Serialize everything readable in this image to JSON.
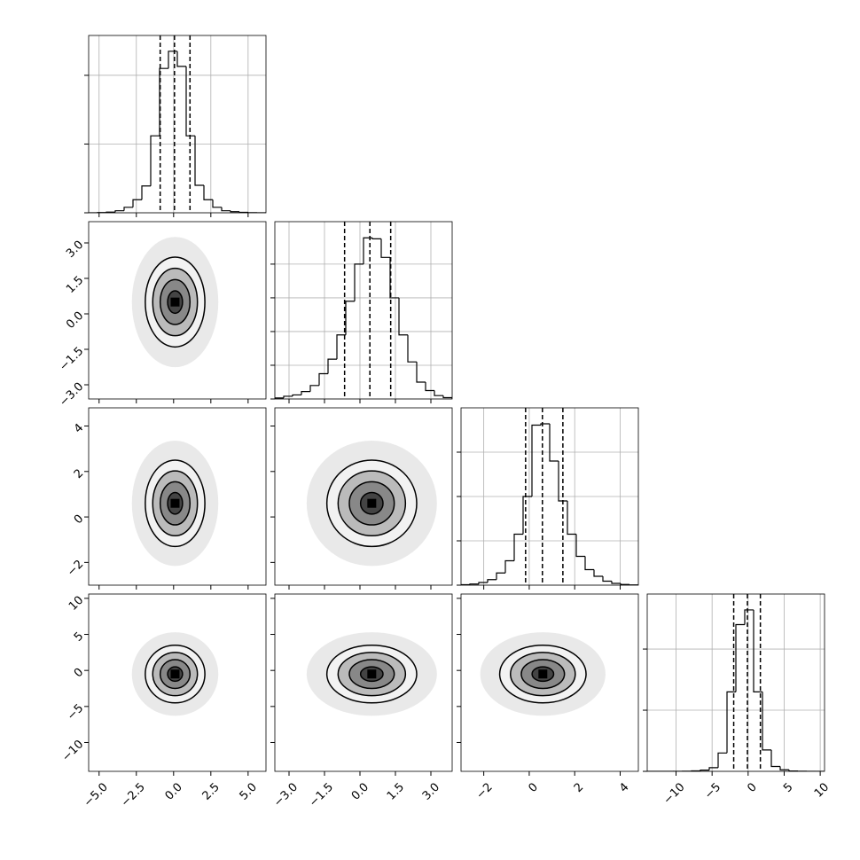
{
  "chart_data": {
    "type": "corner",
    "lims": [
      [
        -5.7,
        6.2
      ],
      [
        -3.6,
        3.9
      ],
      [
        -3,
        4.8
      ],
      [
        -14,
        10.6
      ]
    ],
    "ticks": [
      [
        {
          "value": -5,
          "label": "−5.0"
        },
        {
          "value": -2.5,
          "label": "−2.5"
        },
        {
          "value": 0,
          "label": "0.0"
        },
        {
          "value": 2.5,
          "label": "2.5"
        },
        {
          "value": 5,
          "label": "5.0"
        }
      ],
      [
        {
          "value": -3,
          "label": "−3.0"
        },
        {
          "value": -1.5,
          "label": "−1.5"
        },
        {
          "value": 0,
          "label": "0.0"
        },
        {
          "value": 1.5,
          "label": "1.5"
        },
        {
          "value": 3,
          "label": "3.0"
        }
      ],
      [
        {
          "value": -2,
          "label": "−2"
        },
        0,
        2,
        4
      ],
      [
        {
          "value": -10,
          "label": "−10"
        },
        {
          "value": -5,
          "label": "−5"
        },
        0,
        5,
        10
      ]
    ],
    "means": [
      0.1,
      0.5,
      0.6,
      -0.5
    ],
    "sigmas": [
      1,
      0.95,
      0.95,
      2
    ],
    "levels": [
      0.5,
      1,
      1.5,
      2
    ],
    "hists": [
      {
        "bins": [
          -5.7,
          -5.105,
          -4.51,
          -3.915,
          -3.32,
          -2.725,
          -2.13,
          -1.535,
          -0.94,
          -0.345,
          0.25,
          0.845,
          1.44,
          2.035,
          2.63,
          3.225,
          3.82,
          4.415,
          5.01,
          5.605,
          6.2
        ],
        "counts": [
          0,
          2,
          5,
          15,
          40,
          95,
          195,
          560,
          1050,
          1175,
          1065,
          560,
          200,
          95,
          40,
          15,
          8,
          3,
          1,
          0
        ],
        "ylim": [
          0,
          1290
        ],
        "yticks": [
          0,
          500,
          1000
        ],
        "quantiles": [
          -0.9,
          0.06,
          1.1
        ]
      },
      {
        "bins": [
          -3.6,
          -3.225,
          -2.85,
          -2.475,
          -2.1,
          -1.725,
          -1.35,
          -0.975,
          -0.6,
          -0.225,
          0.15,
          0.525,
          0.9,
          1.275,
          1.65,
          2.025,
          2.4,
          2.775,
          3.15,
          3.525,
          3.9
        ],
        "counts": [
          3,
          8,
          12,
          22,
          40,
          75,
          118,
          190,
          290,
          400,
          478,
          475,
          420,
          300,
          190,
          110,
          50,
          25,
          10,
          4
        ],
        "ylim": [
          0,
          526
        ],
        "yticks": [
          0,
          100,
          200,
          300,
          400
        ],
        "quantiles": [
          -0.65,
          0.42,
          1.3
        ]
      },
      {
        "bins": [
          -3,
          -2.61,
          -2.22,
          -1.83,
          -1.44,
          -1.05,
          -0.66,
          -0.27,
          0.12,
          0.51,
          0.9,
          1.29,
          1.68,
          2.07,
          2.46,
          2.85,
          3.24,
          3.63,
          4.02,
          4.41,
          4.8
        ],
        "counts": [
          2,
          5,
          12,
          25,
          55,
          110,
          230,
          400,
          722,
          728,
          560,
          380,
          230,
          130,
          70,
          40,
          18,
          8,
          3,
          1
        ],
        "ylim": [
          0,
          800
        ],
        "yticks": [
          0,
          200,
          400,
          600
        ],
        "quantiles": [
          -0.16,
          0.58,
          1.48
        ]
      },
      {
        "bins": [
          -14,
          -12.77,
          -11.54,
          -10.31,
          -9.08,
          -7.85,
          -6.62,
          -5.39,
          -4.16,
          -2.93,
          -1.7,
          -0.47,
          0.76,
          1.99,
          3.22,
          4.45,
          5.68,
          6.91,
          8.14,
          9.37,
          10.6
        ],
        "counts": [
          0,
          0,
          0,
          1,
          3,
          8,
          20,
          60,
          300,
          1300,
          2400,
          2640,
          1300,
          350,
          80,
          25,
          6,
          2,
          0,
          0
        ],
        "ylim": [
          0,
          2900
        ],
        "yticks": [
          0,
          1000,
          2000
        ],
        "quantiles": [
          -2,
          -0.1,
          1.7
        ]
      }
    ]
  }
}
